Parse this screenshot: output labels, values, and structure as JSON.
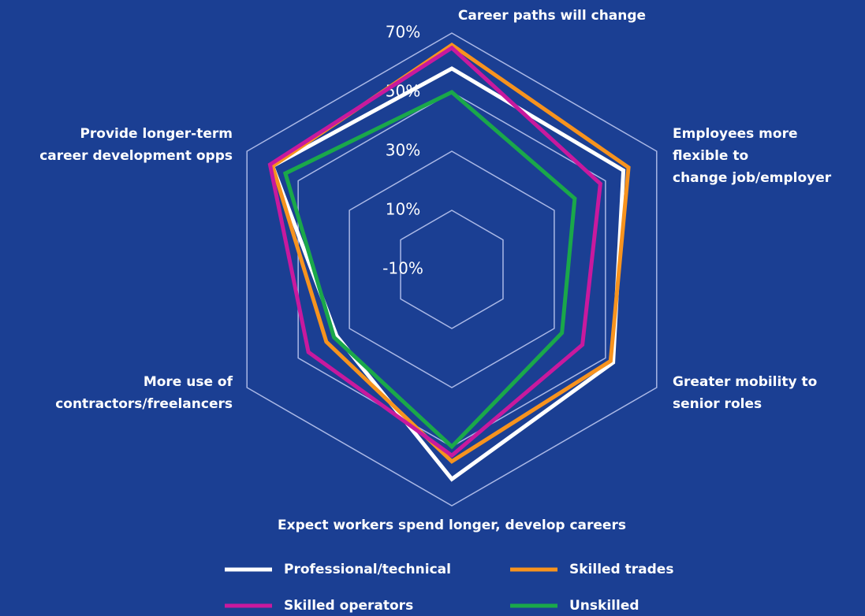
{
  "chart_data": {
    "type": "radar",
    "categories": [
      [
        "Career paths will change"
      ],
      [
        "Employees more",
        "flexible to",
        "change job/employer"
      ],
      [
        "Greater mobility to",
        "senior roles"
      ],
      [
        "Expect workers spend longer, develop careers"
      ],
      [
        "More use of",
        "contractors/freelancers"
      ],
      [
        "Provide longer-term",
        "career development opps"
      ]
    ],
    "series": [
      {
        "name": "Professional/technical",
        "color": "#ffffff",
        "values": [
          58,
          57,
          53,
          61,
          35,
          60
        ]
      },
      {
        "name": "Skilled trades",
        "color": "#f7931e",
        "values": [
          66,
          59,
          52,
          55,
          39,
          60
        ]
      },
      {
        "name": "Skilled operators",
        "color": "#c8199e",
        "values": [
          65,
          48,
          41,
          53,
          46,
          61
        ]
      },
      {
        "name": "Unskilled",
        "color": "#1aa84a",
        "values": [
          50,
          38,
          33,
          50,
          36,
          55
        ]
      }
    ],
    "ylim": [
      -10,
      70
    ],
    "yticks": [
      {
        "value": -10,
        "label": "-10%"
      },
      {
        "value": 10,
        "label": "10%"
      },
      {
        "value": 30,
        "label": "30%"
      },
      {
        "value": 50,
        "label": "50%"
      },
      {
        "value": 70,
        "label": "70%"
      }
    ],
    "grid": true
  }
}
